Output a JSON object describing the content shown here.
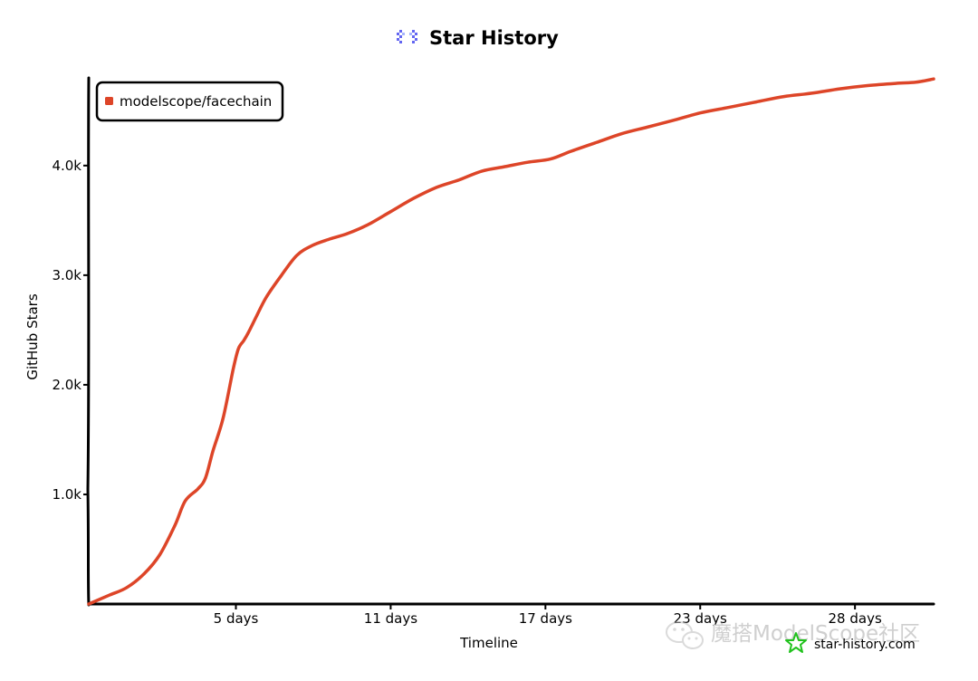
{
  "header": {
    "title": "Star History",
    "logo_icon": "star-history-logo-icon"
  },
  "chart_data": {
    "type": "line",
    "title": "Star History",
    "xlabel": "Timeline",
    "ylabel": "GitHub Stars",
    "xlim": [
      0,
      33.3
    ],
    "ylim": [
      0,
      4800
    ],
    "x_ticks": [
      {
        "value": 5.8,
        "label": "5 days"
      },
      {
        "value": 11.9,
        "label": "11 days"
      },
      {
        "value": 18,
        "label": "17 days"
      },
      {
        "value": 24.1,
        "label": "23 days"
      },
      {
        "value": 30.2,
        "label": "28 days"
      }
    ],
    "y_ticks": [
      {
        "value": 1000,
        "label": "1.0k"
      },
      {
        "value": 2000,
        "label": "2.0k"
      },
      {
        "value": 3000,
        "label": "3.0k"
      },
      {
        "value": 4000,
        "label": "4.0k"
      }
    ],
    "grid": false,
    "legend_position": "top-left",
    "series": [
      {
        "name": "modelscope/facechain",
        "color": "#dd4528",
        "x": [
          0,
          0.8,
          1.5,
          2.2,
          2.8,
          3.4,
          3.8,
          4.3,
          4.6,
          4.9,
          5.3,
          5.7,
          5.9,
          6.1,
          6.3,
          6.6,
          7.0,
          7.6,
          8.2,
          8.8,
          9.5,
          10.2,
          11.0,
          11.9,
          12.8,
          13.7,
          14.6,
          15.5,
          16.4,
          17.3,
          18.2,
          19.0,
          20.0,
          21.0,
          22.0,
          23.0,
          24.1,
          25.2,
          26.3,
          27.4,
          28.5,
          29.6,
          30.7,
          31.8,
          32.6,
          33.3
        ],
        "y": [
          0,
          80,
          150,
          280,
          450,
          720,
          940,
          1050,
          1150,
          1400,
          1700,
          2150,
          2330,
          2400,
          2480,
          2620,
          2800,
          3000,
          3180,
          3270,
          3330,
          3380,
          3460,
          3580,
          3700,
          3800,
          3870,
          3950,
          3990,
          4030,
          4060,
          4130,
          4210,
          4290,
          4350,
          4410,
          4480,
          4530,
          4580,
          4630,
          4660,
          4700,
          4730,
          4750,
          4760,
          4790
        ]
      }
    ]
  },
  "watermark": {
    "site": "star-history.com",
    "site_icon": "star-history-star-icon",
    "wechat_icon": "wechat-icon",
    "wechat_text": "魔搭ModelScope社区",
    "brand_color": "#21c21d"
  },
  "colors": {
    "line": "#dd4528",
    "axis": "#000000",
    "logo": "#6366f1"
  }
}
